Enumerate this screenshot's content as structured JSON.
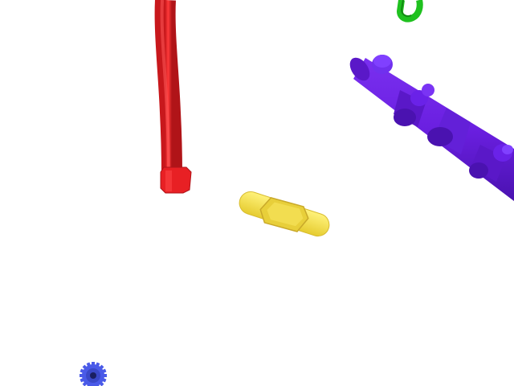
{
  "scene": {
    "background": "#ffffff",
    "objects": [
      {
        "name": "red-flexible-hose",
        "icon": "hose-icon",
        "color": "#f0262a",
        "shade": "#b8141a"
      },
      {
        "name": "green-hook",
        "icon": "hook-icon",
        "color": "#1fc11f",
        "shade": "#128a12"
      },
      {
        "name": "purple-assembly-rod",
        "icon": "rod-icon",
        "color": "#6a1fe0",
        "shade": "#4a12b0"
      },
      {
        "name": "yellow-wing-nut",
        "icon": "wingnut-icon",
        "color": "#f4e24a",
        "shade": "#c9a92a"
      },
      {
        "name": "blue-gear",
        "icon": "gear-icon",
        "color": "#4a5ae8",
        "shade": "#2a33a8"
      }
    ]
  }
}
